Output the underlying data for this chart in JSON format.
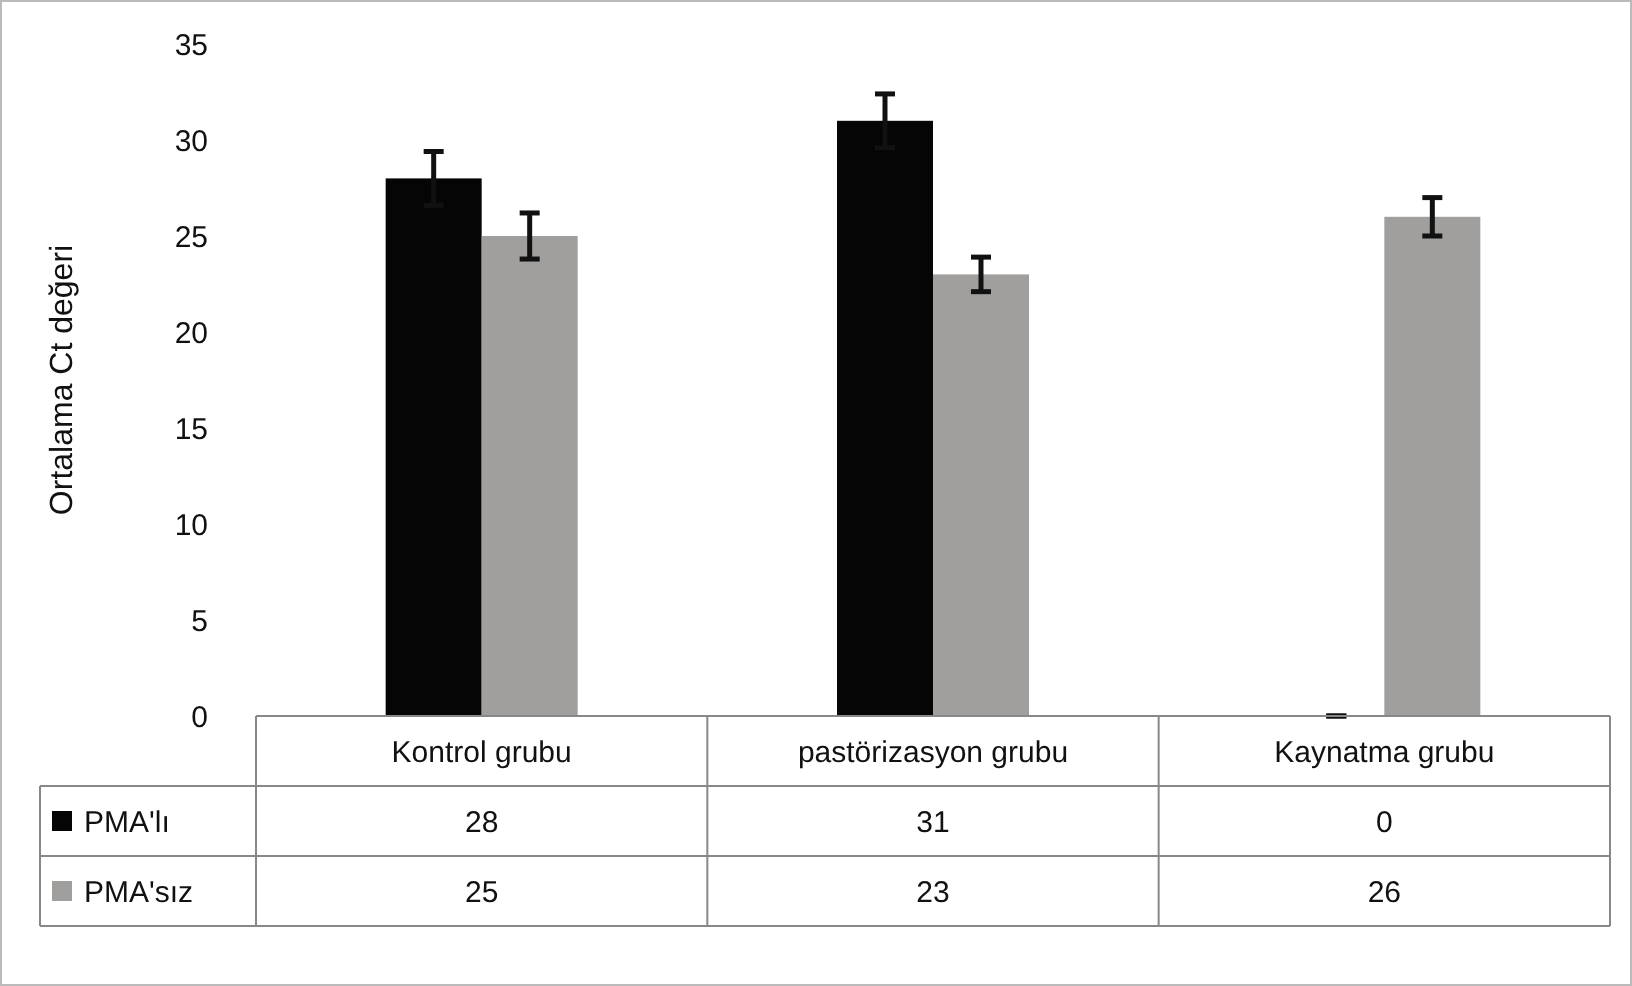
{
  "chart_data": {
    "type": "bar",
    "ylabel": "Ortalama Ct değeri",
    "categories": [
      "Kontrol grubu",
      "pastörizasyon grubu",
      "Kaynatma grubu"
    ],
    "series": [
      {
        "name": "PMA'lı",
        "color": "#050505",
        "values": [
          28,
          31,
          0
        ],
        "errors": [
          1.4,
          1.4,
          0
        ]
      },
      {
        "name": "PMA'sız",
        "color": "#a09f9e",
        "values": [
          25,
          23,
          26
        ],
        "errors": [
          1.2,
          0.9,
          1.0
        ]
      }
    ],
    "ylim": [
      0,
      35
    ],
    "yticks": [
      0,
      5,
      10,
      15,
      20,
      25,
      30,
      35
    ],
    "data_labels": true,
    "grid": false,
    "legend": "bottom"
  }
}
